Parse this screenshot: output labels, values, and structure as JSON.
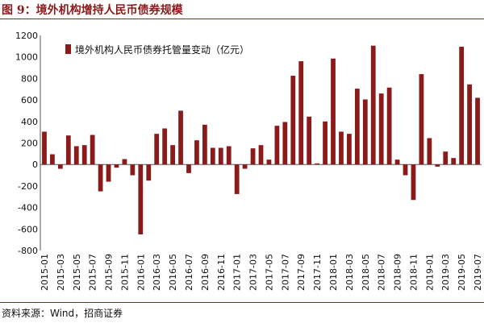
{
  "header": {
    "title": "图 9：境外机构增持人民币债券规模"
  },
  "footer": {
    "source": "资料来源：Wind，招商证券"
  },
  "colors": {
    "bar": "#8b1a1a",
    "accent_rule": "#9c1c1c"
  },
  "chart_data": {
    "type": "bar",
    "title": "",
    "xlabel": "",
    "ylabel": "",
    "ylim": [
      -800,
      1200
    ],
    "yticks": [
      1200,
      1000,
      800,
      600,
      400,
      200,
      0,
      -200,
      -400,
      -600,
      -800
    ],
    "legend": {
      "position": "top-left",
      "entries": [
        "境外机构人民币债券托管量变动（亿元）"
      ]
    },
    "series": [
      {
        "name": "境外机构人民币债券托管量变动（亿元）",
        "values": [
          305,
          95,
          -40,
          270,
          170,
          180,
          275,
          -250,
          -160,
          -30,
          50,
          -100,
          -650,
          -150,
          285,
          335,
          180,
          500,
          -80,
          225,
          370,
          155,
          155,
          170,
          -275,
          -40,
          150,
          180,
          45,
          360,
          395,
          825,
          960,
          445,
          10,
          400,
          985,
          305,
          285,
          705,
          605,
          1105,
          660,
          715,
          45,
          -100,
          -330,
          840,
          245,
          -20,
          120,
          60,
          1095,
          745,
          620
        ]
      }
    ],
    "categories": [
      "2015-01",
      "2015-02",
      "2015-03",
      "2015-04",
      "2015-05",
      "2015-06",
      "2015-07",
      "2015-08",
      "2015-09",
      "2015-10",
      "2015-11",
      "2015-12",
      "2016-01",
      "2016-02",
      "2016-03",
      "2016-04",
      "2016-05",
      "2016-06",
      "2016-07",
      "2016-08",
      "2016-09",
      "2016-10",
      "2016-11",
      "2016-12",
      "2017-01",
      "2017-02",
      "2017-03",
      "2017-04",
      "2017-05",
      "2017-06",
      "2017-07",
      "2017-08",
      "2017-09",
      "2017-10",
      "2017-11",
      "2017-12",
      "2018-01",
      "2018-02",
      "2018-03",
      "2018-04",
      "2018-05",
      "2018-06",
      "2018-07",
      "2018-08",
      "2018-09",
      "2018-10",
      "2018-11",
      "2018-12",
      "2019-01",
      "2019-02",
      "2019-03",
      "2019-04",
      "2019-05",
      "2019-06",
      "2019-07"
    ],
    "xtick_labels": [
      "2015-01",
      "2015-03",
      "2015-05",
      "2015-07",
      "2015-09",
      "2015-11",
      "2016-01",
      "2016-03",
      "2016-05",
      "2016-07",
      "2016-09",
      "2016-11",
      "2017-01",
      "2017-03",
      "2017-05",
      "2017-07",
      "2017-09",
      "2017-11",
      "2018-01",
      "2018-03",
      "2018-05",
      "2018-07",
      "2018-09",
      "2018-11",
      "2019-01",
      "2019-03",
      "2019-05",
      "2019-07"
    ]
  }
}
